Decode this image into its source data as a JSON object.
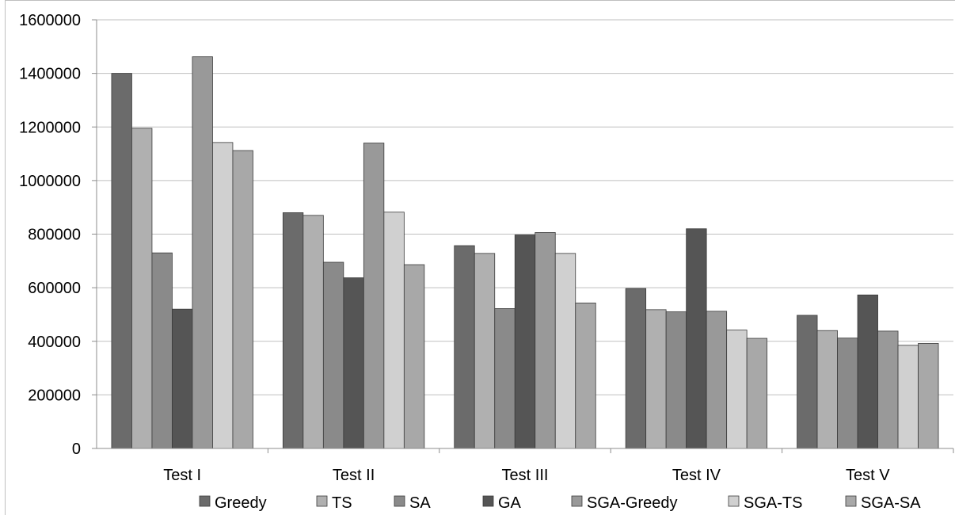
{
  "chart_data": {
    "type": "bar",
    "title": "",
    "xlabel": "",
    "ylabel": "",
    "ylim": [
      0,
      1600000
    ],
    "yticks": [
      0,
      200000,
      400000,
      600000,
      800000,
      1000000,
      1200000,
      1400000,
      1600000
    ],
    "ytick_labels": [
      "0",
      "200000",
      "400000",
      "600000",
      "800000",
      "1000000",
      "1200000",
      "1400000",
      "1600000"
    ],
    "categories": [
      "Test I",
      "Test II",
      "Test III",
      "Test IV",
      "Test V"
    ],
    "grid": true,
    "legend_position": "bottom",
    "series": [
      {
        "name": "Greedy",
        "color": "#6b6b6b",
        "values": [
          1400000,
          880000,
          757000,
          597000,
          497000
        ]
      },
      {
        "name": "TS",
        "color": "#b0b0b0",
        "values": [
          1195000,
          870000,
          728000,
          518000,
          440000
        ]
      },
      {
        "name": "SA",
        "color": "#8a8a8a",
        "values": [
          730000,
          695000,
          522000,
          510000,
          412000
        ]
      },
      {
        "name": "GA",
        "color": "#555555",
        "values": [
          520000,
          637000,
          797000,
          820000,
          573000
        ]
      },
      {
        "name": "SGA-Greedy",
        "color": "#999999",
        "values": [
          1462000,
          1140000,
          806000,
          512000,
          438000
        ]
      },
      {
        "name": "SGA-TS",
        "color": "#d0d0d0",
        "values": [
          1142000,
          882000,
          728000,
          442000,
          385000
        ]
      },
      {
        "name": "SGA-SA",
        "color": "#a8a8a8",
        "values": [
          1112000,
          686000,
          543000,
          411000,
          392000
        ]
      }
    ]
  }
}
